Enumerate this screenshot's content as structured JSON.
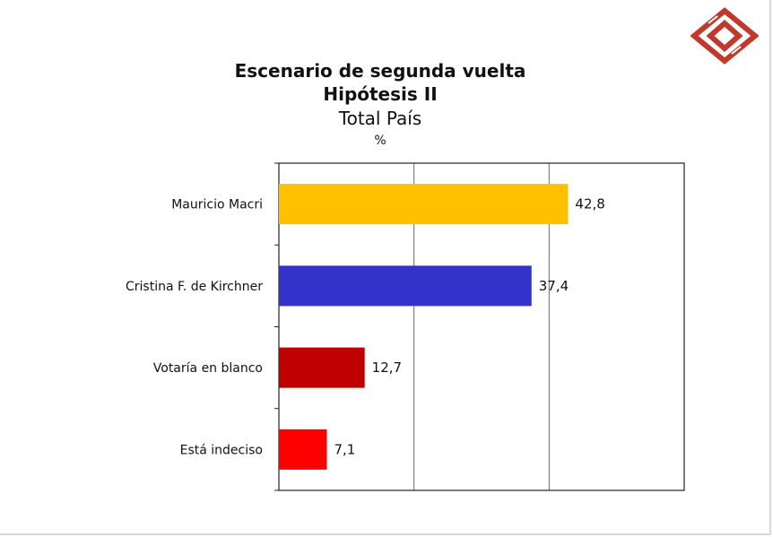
{
  "chart_data": {
    "type": "bar",
    "orientation": "horizontal",
    "title": "Escenario de segunda vuelta",
    "subtitle": "Hipótesis II",
    "scope": "Total País",
    "unit": "%",
    "categories": [
      "Mauricio Macri",
      "Cristina F. de Kirchner",
      "Votaría en blanco",
      "Está indeciso"
    ],
    "values": [
      42.8,
      37.4,
      12.7,
      7.1
    ],
    "value_labels": [
      "42,8",
      "37,4",
      "12,7",
      "7,1"
    ],
    "colors": [
      "#FFC000",
      "#3333CC",
      "#C00000",
      "#FF0000"
    ],
    "xlim": [
      0,
      60
    ],
    "grid": true,
    "legend": "none"
  },
  "logo": {
    "color": "#C0392B",
    "icon": "interlocked-diamonds-logo"
  }
}
